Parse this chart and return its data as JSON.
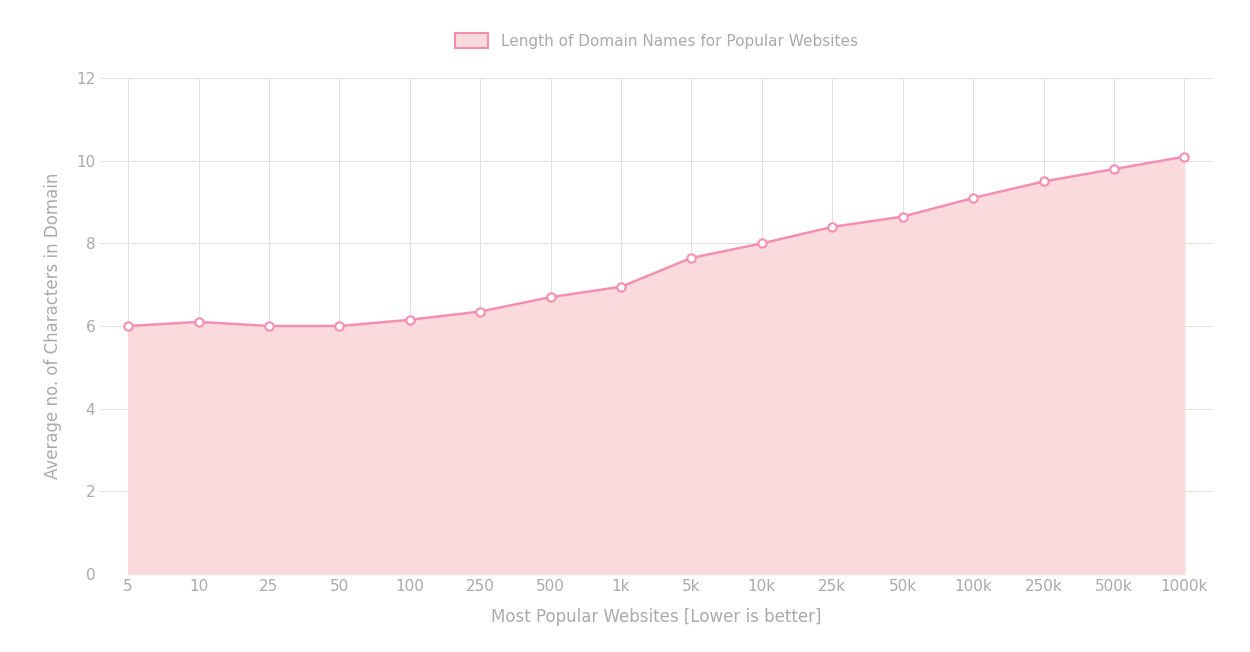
{
  "x_labels": [
    "5",
    "10",
    "25",
    "50",
    "100",
    "250",
    "500",
    "1k",
    "5k",
    "10k",
    "25k",
    "50k",
    "100k",
    "250k",
    "500k",
    "1000k"
  ],
  "x_values": [
    0,
    1,
    2,
    3,
    4,
    5,
    6,
    7,
    8,
    9,
    10,
    11,
    12,
    13,
    14,
    15
  ],
  "y_values": [
    6.0,
    6.1,
    6.0,
    6.0,
    6.15,
    6.35,
    6.7,
    6.95,
    7.65,
    8.0,
    8.4,
    8.65,
    9.1,
    9.5,
    9.8,
    10.1
  ],
  "line_color": "#F48FB1",
  "fill_color": "#FADADD",
  "marker_edge_color": "#F48FB1",
  "marker_face_color": "#FFFFFF",
  "background_color": "#FFFFFF",
  "grid_color": "#E0E0E0",
  "xlabel": "Most Popular Websites [Lower is better]",
  "ylabel": "Average no. of Characters in Domain",
  "ylim": [
    0,
    12
  ],
  "legend_label": "Length of Domain Names for Popular Websites",
  "legend_patch_face": "#FADADD",
  "legend_patch_edge": "#F48FB1",
  "text_color": "#AAAAAA",
  "tick_color": "#AAAAAA",
  "yticks": [
    0,
    2,
    4,
    6,
    8,
    10,
    12
  ]
}
